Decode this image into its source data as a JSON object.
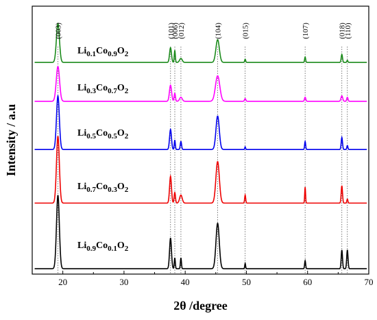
{
  "chart_data": {
    "type": "line",
    "xlabel": "2θ /degree",
    "ylabel": "Intensity / a.u",
    "xlim": [
      15,
      70
    ],
    "xticks": [
      20,
      30,
      40,
      50,
      60,
      70
    ],
    "grid": false,
    "peak_labels": [
      {
        "hkl": "(003)",
        "x": 19.2
      },
      {
        "hkl": "(101)",
        "x": 37.6
      },
      {
        "hkl": "(006)",
        "x": 38.3
      },
      {
        "hkl": "(012)",
        "x": 39.3
      },
      {
        "hkl": "(104)",
        "x": 45.3
      },
      {
        "hkl": "(015)",
        "x": 49.8
      },
      {
        "hkl": "(107)",
        "x": 59.6
      },
      {
        "hkl": "(018)",
        "x": 65.6
      },
      {
        "hkl": "(110)",
        "x": 66.5
      }
    ],
    "series": [
      {
        "name": "Li0.1Co0.9O2",
        "name_parts": [
          {
            "t": "Li",
            "s": false
          },
          {
            "t": "0.1",
            "s": true
          },
          {
            "t": "Co",
            "s": false
          },
          {
            "t": "0.9",
            "s": true
          },
          {
            "t": "O",
            "s": false
          },
          {
            "t": "2",
            "s": true
          }
        ],
        "color": "#1a8a1a",
        "baseline": 0.79,
        "peaks": [
          {
            "x": 19.2,
            "h": 0.145,
            "w": 0.35
          },
          {
            "x": 37.6,
            "h": 0.055,
            "w": 0.22
          },
          {
            "x": 38.3,
            "h": 0.045,
            "w": 0.12
          },
          {
            "x": 39.3,
            "h": 0.015,
            "w": 0.3
          },
          {
            "x": 45.3,
            "h": 0.085,
            "w": 0.4
          },
          {
            "x": 49.8,
            "h": 0.012,
            "w": 0.12
          },
          {
            "x": 59.6,
            "h": 0.02,
            "w": 0.12
          },
          {
            "x": 65.6,
            "h": 0.03,
            "w": 0.15
          },
          {
            "x": 66.5,
            "h": 0.008,
            "w": 0.12
          }
        ]
      },
      {
        "name": "Li0.3Co0.7O2",
        "name_parts": [
          {
            "t": "Li",
            "s": false
          },
          {
            "t": "0.3",
            "s": true
          },
          {
            "t": "Co",
            "s": false
          },
          {
            "t": "0.7",
            "s": true
          },
          {
            "t": "O",
            "s": false
          },
          {
            "t": "2",
            "s": true
          }
        ],
        "color": "#ff00ff",
        "baseline": 0.645,
        "peaks": [
          {
            "x": 19.2,
            "h": 0.13,
            "w": 0.38
          },
          {
            "x": 37.6,
            "h": 0.06,
            "w": 0.25
          },
          {
            "x": 38.3,
            "h": 0.03,
            "w": 0.15
          },
          {
            "x": 39.3,
            "h": 0.015,
            "w": 0.3
          },
          {
            "x": 45.3,
            "h": 0.095,
            "w": 0.5
          },
          {
            "x": 49.8,
            "h": 0.01,
            "w": 0.15
          },
          {
            "x": 59.6,
            "h": 0.015,
            "w": 0.15
          },
          {
            "x": 65.6,
            "h": 0.02,
            "w": 0.2
          },
          {
            "x": 66.5,
            "h": 0.015,
            "w": 0.15
          }
        ]
      },
      {
        "name": "Li0.5Co0.5O2",
        "name_parts": [
          {
            "t": "Li",
            "s": false
          },
          {
            "t": "0.5",
            "s": true
          },
          {
            "t": "Co",
            "s": false
          },
          {
            "t": "0.5",
            "s": true
          },
          {
            "t": "O",
            "s": false
          },
          {
            "t": "2",
            "s": true
          }
        ],
        "color": "#0000ee",
        "baseline": 0.465,
        "peaks": [
          {
            "x": 19.2,
            "h": 0.2,
            "w": 0.33
          },
          {
            "x": 37.6,
            "h": 0.075,
            "w": 0.22
          },
          {
            "x": 38.3,
            "h": 0.035,
            "w": 0.12
          },
          {
            "x": 39.3,
            "h": 0.03,
            "w": 0.15
          },
          {
            "x": 45.3,
            "h": 0.125,
            "w": 0.38
          },
          {
            "x": 49.8,
            "h": 0.01,
            "w": 0.1
          },
          {
            "x": 59.6,
            "h": 0.03,
            "w": 0.12
          },
          {
            "x": 65.6,
            "h": 0.045,
            "w": 0.15
          },
          {
            "x": 66.5,
            "h": 0.015,
            "w": 0.12
          }
        ]
      },
      {
        "name": "Li0.7Co0.3O2",
        "name_parts": [
          {
            "t": "Li",
            "s": false
          },
          {
            "t": "0.7",
            "s": true
          },
          {
            "t": "Co",
            "s": false
          },
          {
            "t": "0.3",
            "s": true
          },
          {
            "t": "O",
            "s": false
          },
          {
            "t": "2",
            "s": true
          }
        ],
        "color": "#ee0000",
        "baseline": 0.265,
        "peaks": [
          {
            "x": 19.2,
            "h": 0.25,
            "w": 0.33
          },
          {
            "x": 37.6,
            "h": 0.1,
            "w": 0.22
          },
          {
            "x": 38.3,
            "h": 0.04,
            "w": 0.15
          },
          {
            "x": 39.3,
            "h": 0.03,
            "w": 0.3
          },
          {
            "x": 45.3,
            "h": 0.155,
            "w": 0.4
          },
          {
            "x": 49.8,
            "h": 0.03,
            "w": 0.12
          },
          {
            "x": 59.6,
            "h": 0.06,
            "w": 0.1
          },
          {
            "x": 65.6,
            "h": 0.065,
            "w": 0.15
          },
          {
            "x": 66.5,
            "h": 0.015,
            "w": 0.12
          }
        ]
      },
      {
        "name": "Li0.9Co0.1O2",
        "name_parts": [
          {
            "t": "Li",
            "s": false
          },
          {
            "t": "0.9",
            "s": true
          },
          {
            "t": "Co",
            "s": false
          },
          {
            "t": "0.1",
            "s": true
          },
          {
            "t": "O",
            "s": false
          },
          {
            "t": "2",
            "s": true
          }
        ],
        "color": "#000000",
        "baseline": 0.02,
        "peaks": [
          {
            "x": 19.2,
            "h": 0.275,
            "w": 0.33
          },
          {
            "x": 37.6,
            "h": 0.115,
            "w": 0.22
          },
          {
            "x": 38.3,
            "h": 0.04,
            "w": 0.12
          },
          {
            "x": 39.3,
            "h": 0.04,
            "w": 0.12
          },
          {
            "x": 45.3,
            "h": 0.17,
            "w": 0.38
          },
          {
            "x": 49.8,
            "h": 0.02,
            "w": 0.1
          },
          {
            "x": 59.6,
            "h": 0.03,
            "w": 0.12
          },
          {
            "x": 65.6,
            "h": 0.07,
            "w": 0.15
          },
          {
            "x": 66.5,
            "h": 0.07,
            "w": 0.15
          }
        ]
      }
    ]
  }
}
